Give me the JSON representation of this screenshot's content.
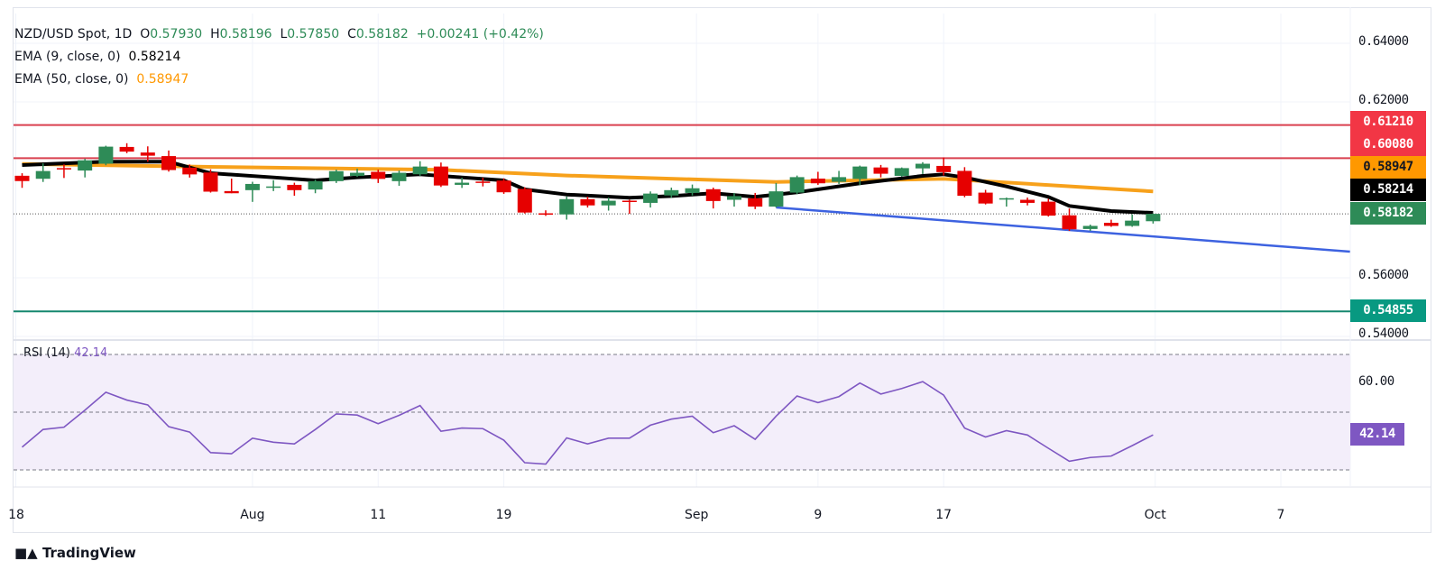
{
  "legend": {
    "symbol": "NZD/USD Spot, 1D",
    "o_label": "O",
    "open": "0.57930",
    "h_label": "H",
    "high": "0.58196",
    "l_label": "L",
    "low": "0.57850",
    "c_label": "C",
    "close": "0.58182",
    "change": "+0.00241 (+0.42%)"
  },
  "indicators": [
    {
      "label": "EMA (9, close, 0)",
      "value": "0.58214",
      "color": "#000000"
    },
    {
      "label": "EMA (50, close, 0)",
      "value": "0.58947",
      "color": "#ff9800"
    }
  ],
  "price_axis": {
    "ticks": [
      {
        "value": 0.64,
        "label": "0.64000"
      },
      {
        "value": 0.62,
        "label": "0.62000"
      },
      {
        "value": 0.56,
        "label": "0.56000"
      },
      {
        "value": 0.54,
        "label": "0.54000"
      }
    ]
  },
  "price_labels": [
    {
      "text": "0.61210",
      "color": "#f23645"
    },
    {
      "text": "0.60080",
      "color": "#f23645"
    },
    {
      "text": "0.58947",
      "color": "#ff9800"
    },
    {
      "text": "0.58214",
      "color": "#000000"
    },
    {
      "text": "0.58182",
      "color": "#2e8b57"
    },
    {
      "text": "0.54855",
      "color": "#089981"
    }
  ],
  "time_axis": [
    {
      "label": "18",
      "index": -0.3
    },
    {
      "label": "Aug",
      "index": 11
    },
    {
      "label": "11",
      "index": 17
    },
    {
      "label": "19",
      "index": 23
    },
    {
      "label": "Sep",
      "index": 32.2
    },
    {
      "label": "9",
      "index": 38
    },
    {
      "label": "17",
      "index": 44
    },
    {
      "label": "Oct",
      "index": 54.1
    },
    {
      "label": "7",
      "index": 60.1
    }
  ],
  "rsi": {
    "label": "RSI (14)",
    "value": "42.14",
    "color": "#7e57c2",
    "band_fill": "#f3eefa",
    "levels": [
      70,
      50,
      30
    ],
    "axis_label": {
      "value": 60,
      "text": "60.00"
    },
    "values": [
      37.9,
      44.0,
      44.8,
      50.7,
      56.9,
      54.2,
      52.5,
      45.0,
      43.1,
      36.0,
      35.6,
      41.0,
      39.6,
      39.0,
      44.0,
      49.4,
      49.0,
      46.0,
      48.9,
      52.3,
      43.4,
      44.5,
      44.3,
      40.3,
      32.5,
      32.0,
      41.1,
      39.0,
      41.0,
      41.0,
      45.5,
      47.6,
      48.6,
      42.9,
      45.3,
      40.6,
      48.6,
      55.6,
      53.3,
      55.4,
      60.1,
      56.3,
      58.2,
      60.6,
      55.9,
      44.5,
      41.4,
      43.6,
      42.1,
      37.5,
      33.0,
      34.3,
      34.8,
      38.4,
      42.14
    ]
  },
  "chart_data": {
    "type": "candlestick",
    "title": "NZD/USD Spot, 1D",
    "ylim": [
      0.537,
      0.645
    ],
    "grid": true,
    "up_color": "#2e8b57",
    "down_color": "#e60000",
    "ohlc": [
      [
        0.59481,
        0.59567,
        0.59069,
        0.593
      ],
      [
        0.59378,
        0.59905,
        0.5927,
        0.59642
      ],
      [
        0.59742,
        0.59869,
        0.59405,
        0.59732
      ],
      [
        0.59659,
        0.60059,
        0.59424,
        0.60008
      ],
      [
        0.59891,
        0.60506,
        0.5984,
        0.60474
      ],
      [
        0.60464,
        0.60591,
        0.60252,
        0.60305
      ],
      [
        0.60274,
        0.60484,
        0.59957,
        0.60166
      ],
      [
        0.60152,
        0.60342,
        0.59622,
        0.59676
      ],
      [
        0.59759,
        0.59864,
        0.59419,
        0.59527
      ],
      [
        0.59593,
        0.59701,
        0.58907,
        0.58939
      ],
      [
        0.58958,
        0.59383,
        0.58885,
        0.58885
      ],
      [
        0.5899,
        0.59275,
        0.5859,
        0.59202
      ],
      [
        0.5911,
        0.59329,
        0.58958,
        0.59116
      ],
      [
        0.59171,
        0.59244,
        0.58799,
        0.5899
      ],
      [
        0.59012,
        0.59352,
        0.58885,
        0.59298
      ],
      [
        0.59297,
        0.59691,
        0.59234,
        0.59637
      ],
      [
        0.59478,
        0.59723,
        0.59446,
        0.59583
      ],
      [
        0.59615,
        0.59691,
        0.59234,
        0.59373
      ],
      [
        0.59297,
        0.59659,
        0.59139,
        0.59583
      ],
      [
        0.59532,
        0.59977,
        0.59478,
        0.59796
      ],
      [
        0.59796,
        0.59932,
        0.59098,
        0.59149
      ],
      [
        0.59171,
        0.59415,
        0.59066,
        0.59244
      ],
      [
        0.59282,
        0.59415,
        0.59117,
        0.59275
      ],
      [
        0.59317,
        0.59393,
        0.58863,
        0.58917
      ],
      [
        0.59032,
        0.59086,
        0.58194,
        0.58226
      ],
      [
        0.582,
        0.58302,
        0.58112,
        0.5819
      ],
      [
        0.58162,
        0.58769,
        0.57985,
        0.58683
      ],
      [
        0.58683,
        0.58769,
        0.58397,
        0.5847
      ],
      [
        0.5847,
        0.58737,
        0.58292,
        0.58629
      ],
      [
        0.58631,
        0.58661,
        0.58184,
        0.58625
      ],
      [
        0.58556,
        0.58946,
        0.58397,
        0.58873
      ],
      [
        0.58809,
        0.59076,
        0.58727,
        0.5899
      ],
      [
        0.58895,
        0.59181,
        0.58809,
        0.59054
      ],
      [
        0.59022,
        0.59076,
        0.58365,
        0.58619
      ],
      [
        0.58661,
        0.58895,
        0.58429,
        0.58787
      ],
      [
        0.58714,
        0.58895,
        0.58343,
        0.58429
      ],
      [
        0.58429,
        0.59234,
        0.58397,
        0.58949
      ],
      [
        0.58907,
        0.59488,
        0.58853,
        0.59434
      ],
      [
        0.59383,
        0.59615,
        0.59171,
        0.59224
      ],
      [
        0.59275,
        0.59647,
        0.59202,
        0.59434
      ],
      [
        0.59373,
        0.59828,
        0.59161,
        0.59796
      ],
      [
        0.59764,
        0.5985,
        0.59424,
        0.59551
      ],
      [
        0.59478,
        0.59764,
        0.59446,
        0.59742
      ],
      [
        0.59732,
        0.59944,
        0.59541,
        0.59891
      ],
      [
        0.59817,
        0.60103,
        0.5949,
        0.59605
      ],
      [
        0.59647,
        0.59774,
        0.58749,
        0.58799
      ],
      [
        0.58905,
        0.59,
        0.58502,
        0.58534
      ],
      [
        0.58705,
        0.58737,
        0.58429,
        0.58714
      ],
      [
        0.58661,
        0.58737,
        0.5847,
        0.58556
      ],
      [
        0.58597,
        0.58693,
        0.58089,
        0.58121
      ],
      [
        0.58131,
        0.58363,
        0.576,
        0.57655
      ],
      [
        0.57665,
        0.57814,
        0.57601,
        0.5777
      ],
      [
        0.57877,
        0.57982,
        0.5774,
        0.5777
      ],
      [
        0.5777,
        0.58163,
        0.5774,
        0.5795
      ],
      [
        0.5793,
        0.58196,
        0.5785,
        0.58182
      ]
    ],
    "ema9": [
      [
        0,
        0.59846
      ],
      [
        4,
        0.5996
      ],
      [
        7,
        0.5996
      ],
      [
        9,
        0.59569
      ],
      [
        12,
        0.59425
      ],
      [
        14,
        0.59323
      ],
      [
        16,
        0.59425
      ],
      [
        19,
        0.59529
      ],
      [
        21,
        0.59425
      ],
      [
        23,
        0.59323
      ],
      [
        24,
        0.59015
      ],
      [
        26,
        0.5884
      ],
      [
        29,
        0.58729
      ],
      [
        31,
        0.5879
      ],
      [
        33,
        0.58883
      ],
      [
        35,
        0.5876
      ],
      [
        37,
        0.58914
      ],
      [
        40,
        0.59222
      ],
      [
        43,
        0.59477
      ],
      [
        44,
        0.59529
      ],
      [
        45,
        0.59425
      ],
      [
        47,
        0.59117
      ],
      [
        49,
        0.5876
      ],
      [
        50,
        0.58452
      ],
      [
        52,
        0.58277
      ],
      [
        54,
        0.58214
      ]
    ],
    "ema50": [
      [
        0,
        0.59886
      ],
      [
        9,
        0.59785
      ],
      [
        20,
        0.59683
      ],
      [
        26,
        0.5949
      ],
      [
        36,
        0.59271
      ],
      [
        44,
        0.59375
      ],
      [
        47,
        0.59252
      ],
      [
        54,
        0.58947
      ]
    ],
    "horizontal_lines": [
      {
        "price": 0.6121,
        "color": "#d9404f"
      },
      {
        "price": 0.6008,
        "color": "#d9404f"
      },
      {
        "price": 0.54855,
        "color": "#15876f"
      }
    ],
    "trendline": {
      "from": [
        36,
        0.584
      ],
      "to": [
        63.4,
        0.56892
      ],
      "color": "#3d62e0"
    },
    "last_price": 0.58182
  },
  "branding": "TradingView"
}
